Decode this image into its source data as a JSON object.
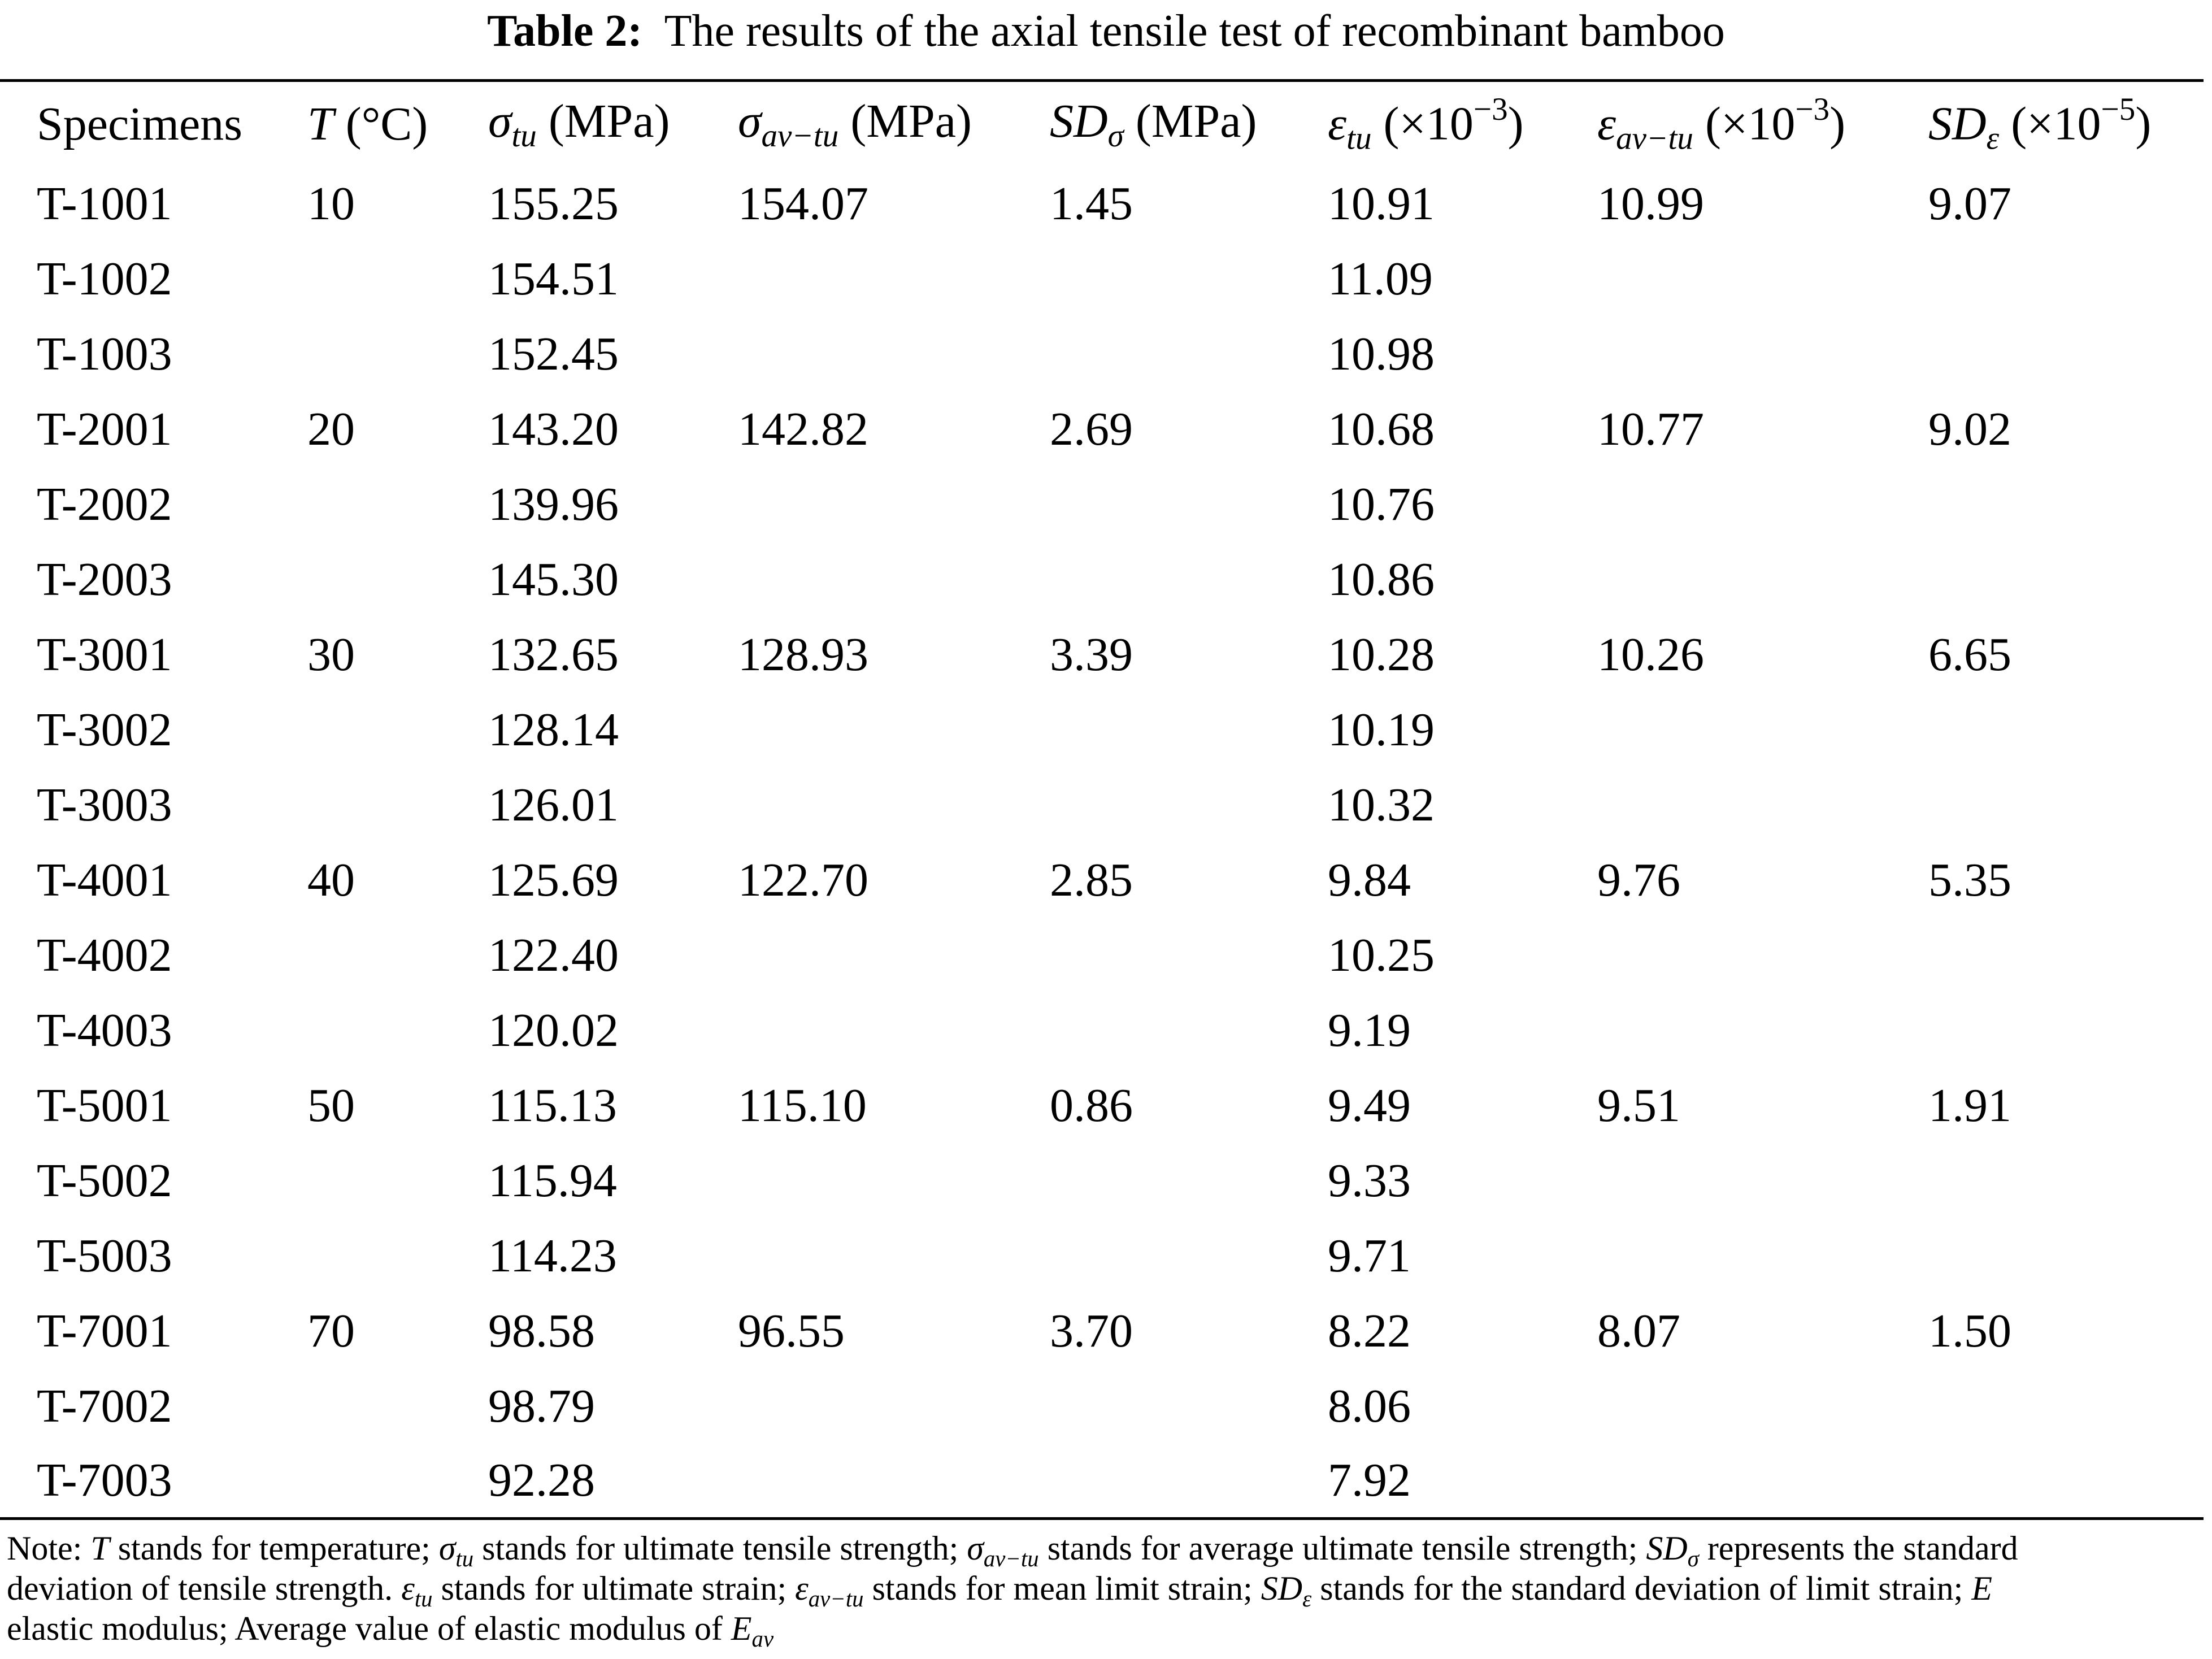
{
  "title": [
    {
      "b": "Table 2:"
    },
    {
      "t": "  The results of the axial tensile test of recombinant bamboo"
    }
  ],
  "table": {
    "header": [
      [
        {
          "t": "Specimens"
        }
      ],
      [
        {
          "i": "T"
        },
        {
          "t": " (°C)"
        }
      ],
      [
        {
          "i": "σ",
          "sub": "tu"
        },
        {
          "t": " (MPa)"
        }
      ],
      [
        {
          "i": "σ",
          "sub": "av−tu"
        },
        {
          "t": " (MPa)"
        }
      ],
      [
        {
          "i": "SD",
          "sub": "σ"
        },
        {
          "t": " (MPa)"
        }
      ],
      [
        {
          "i": "ε",
          "sub": "tu"
        },
        {
          "t": " (×10",
          "sup": "−3"
        },
        {
          "t": ")"
        }
      ],
      [
        {
          "i": "ε",
          "sub": "av−tu"
        },
        {
          "t": " (×10",
          "sup": "−3"
        },
        {
          "t": ")"
        }
      ],
      [
        {
          "i": "SD",
          "sub": "ε"
        },
        {
          "t": " (×10",
          "sup": "−5"
        },
        {
          "t": ")"
        }
      ]
    ],
    "rows": [
      [
        "T-1001",
        "10",
        "155.25",
        "154.07",
        "1.45",
        "10.91",
        "10.99",
        "9.07"
      ],
      [
        "T-1002",
        null,
        "154.51",
        null,
        null,
        "11.09",
        null,
        null
      ],
      [
        "T-1003",
        null,
        "152.45",
        null,
        null,
        "10.98",
        null,
        null
      ],
      [
        "T-2001",
        "20",
        "143.20",
        "142.82",
        "2.69",
        "10.68",
        "10.77",
        "9.02"
      ],
      [
        "T-2002",
        null,
        "139.96",
        null,
        null,
        "10.76",
        null,
        null
      ],
      [
        "T-2003",
        null,
        "145.30",
        null,
        null,
        "10.86",
        null,
        null
      ],
      [
        "T-3001",
        "30",
        "132.65",
        "128.93",
        "3.39",
        "10.28",
        "10.26",
        "6.65"
      ],
      [
        "T-3002",
        null,
        "128.14",
        null,
        null,
        "10.19",
        null,
        null
      ],
      [
        "T-3003",
        null,
        "126.01",
        null,
        null,
        "10.32",
        null,
        null
      ],
      [
        "T-4001",
        "40",
        "125.69",
        "122.70",
        "2.85",
        "9.84",
        "9.76",
        "5.35"
      ],
      [
        "T-4002",
        null,
        "122.40",
        null,
        null,
        "10.25",
        null,
        null
      ],
      [
        "T-4003",
        null,
        "120.02",
        null,
        null,
        "9.19",
        null,
        null
      ],
      [
        "T-5001",
        "50",
        "115.13",
        "115.10",
        "0.86",
        "9.49",
        "9.51",
        "1.91"
      ],
      [
        "T-5002",
        null,
        "115.94",
        null,
        null,
        "9.33",
        null,
        null
      ],
      [
        "T-5003",
        null,
        "114.23",
        null,
        null,
        "9.71",
        null,
        null
      ],
      [
        "T-7001",
        "70",
        "98.58",
        "96.55",
        "3.70",
        "8.22",
        "8.07",
        "1.50"
      ],
      [
        "T-7002",
        null,
        "98.79",
        null,
        null,
        "8.06",
        null,
        null
      ],
      [
        "T-7003",
        null,
        "92.28",
        null,
        null,
        "7.92",
        null,
        null
      ]
    ]
  },
  "note": [
    [
      {
        "t": "Note: "
      },
      {
        "i": "T"
      },
      {
        "t": " stands for temperature; "
      },
      {
        "i": "σ",
        "sub": "tu"
      },
      {
        "t": " stands for ultimate tensile strength; "
      },
      {
        "i": "σ",
        "sub": "av−tu"
      },
      {
        "t": " stands for average ultimate tensile strength; "
      },
      {
        "i": "SD",
        "sub": "σ"
      },
      {
        "t": " represents the standard"
      }
    ],
    [
      {
        "t": "deviation of tensile strength. "
      },
      {
        "i": "ε",
        "sub": "tu"
      },
      {
        "t": " stands for ultimate strain; "
      },
      {
        "i": "ε",
        "sub": "av−tu"
      },
      {
        "t": " stands for mean limit strain; "
      },
      {
        "i": "SD",
        "sub": "ε"
      },
      {
        "t": " stands for the standard deviation of limit strain; "
      },
      {
        "i": "E"
      }
    ],
    [
      {
        "t": "elastic modulus; Average value of elastic modulus of "
      },
      {
        "i": "E",
        "sub": "av"
      }
    ]
  ]
}
